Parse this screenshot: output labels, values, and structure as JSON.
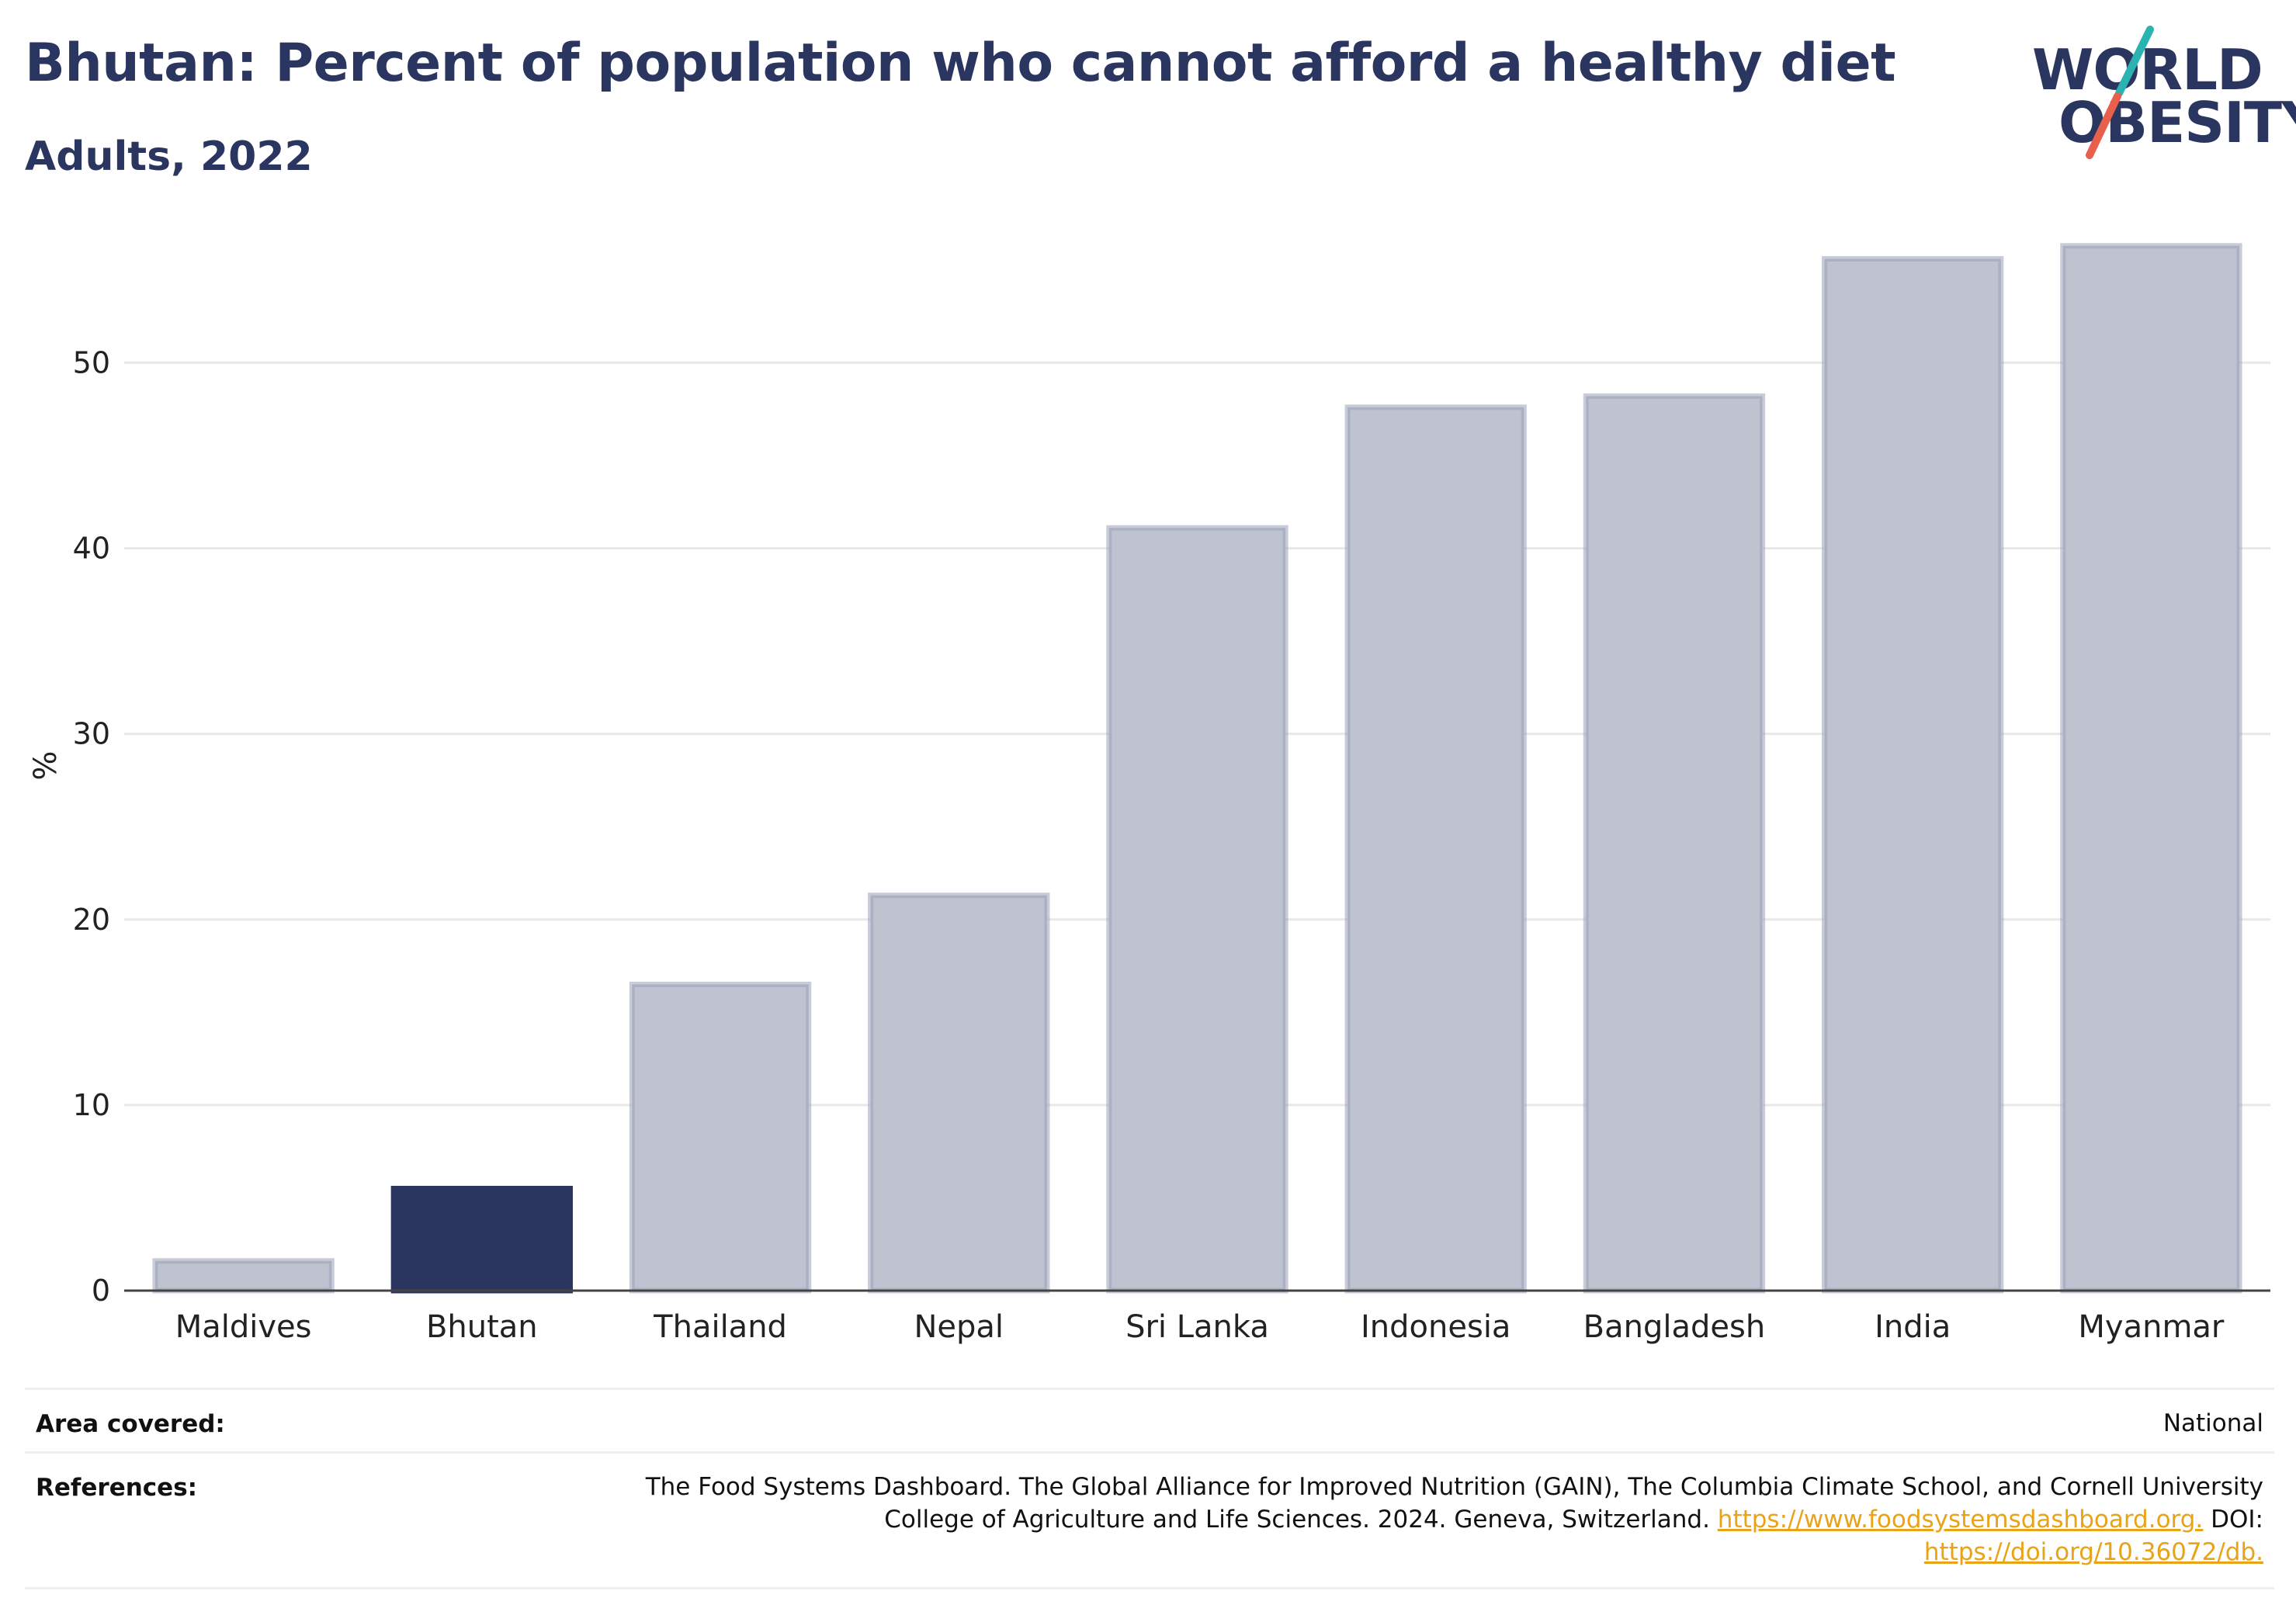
{
  "header": {
    "title": "Bhutan: Percent of population who cannot afford a healthy diet",
    "subtitle": "Adults, 2022"
  },
  "logo": {
    "line1": "WORLD",
    "line2": "OBESITY",
    "colors": {
      "text": "#2a3560",
      "teal": "#2bb3b1",
      "coral": "#e8604c"
    }
  },
  "chart_data": {
    "type": "bar",
    "title": "Bhutan: Percent of population who cannot afford a healthy diet",
    "subtitle": "Adults, 2022",
    "xlabel": "",
    "ylabel": "%",
    "ylim": [
      0,
      57
    ],
    "yticks": [
      0,
      10,
      20,
      30,
      40,
      50
    ],
    "grid": true,
    "legend": "none",
    "categories": [
      "Maldives",
      "Bhutan",
      "Thailand",
      "Nepal",
      "Sri Lanka",
      "Indonesia",
      "Bangladesh",
      "India",
      "Myanmar"
    ],
    "values": [
      1.6,
      5.5,
      16.5,
      21.3,
      41.1,
      47.6,
      48.2,
      55.6,
      56.3
    ],
    "highlight": "Bhutan",
    "colors": {
      "highlight": "#2a3560",
      "bar_fill": "#bfc3d0",
      "bar_stroke": "#9aa0b8",
      "grid": "#e8e8e8",
      "axis": "#444444"
    }
  },
  "footer": {
    "area_key": "Area covered:",
    "area_value": "National",
    "ref_key": "References:",
    "ref_text_1": "The Food Systems Dashboard. The Global Alliance for Improved Nutrition (GAIN), The Columbia Climate School, and Cornell University",
    "ref_text_2": "College of Agriculture and Life Sciences. 2024. Geneva, Switzerland.",
    "ref_link_1": "https://www.foodsystemsdashboard.org.",
    "ref_doi_label": "DOI:",
    "ref_link_2": "https://doi.org/10.36072/db."
  }
}
